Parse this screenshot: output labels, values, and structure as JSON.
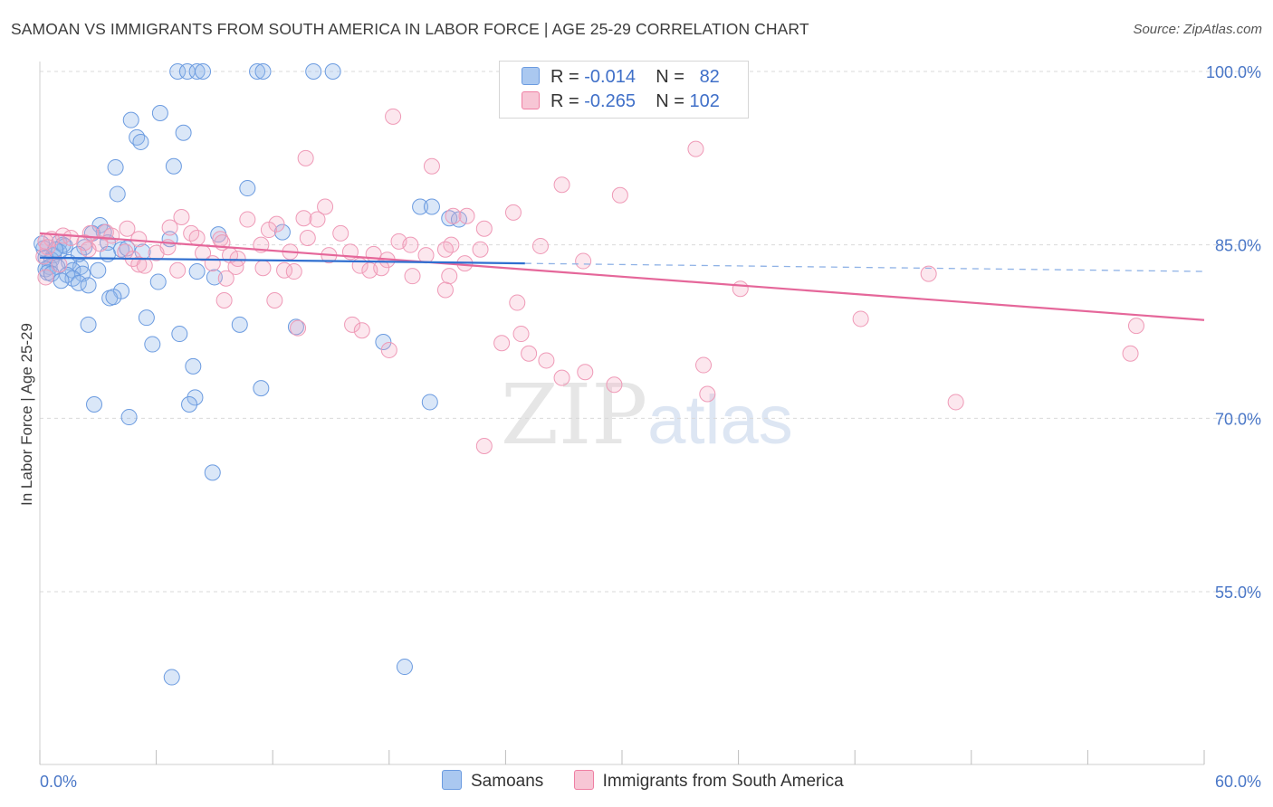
{
  "title": "SAMOAN VS IMMIGRANTS FROM SOUTH AMERICA IN LABOR FORCE | AGE 25-29 CORRELATION CHART",
  "source": "Source: ZipAtlas.com",
  "watermark": {
    "zip": "ZIP",
    "atlas": "atlas"
  },
  "legend": {
    "rows": [
      {
        "r_label": "R =",
        "r_value": "-0.014",
        "n_label": "N =",
        "n_value": "82",
        "color": "#aac8f0"
      },
      {
        "r_label": "R =",
        "r_value": "-0.265",
        "n_label": "N =",
        "n_value": "102",
        "color": "#f7b8cc"
      }
    ]
  },
  "bottom_legend": [
    "Samoans",
    "Immigrants from South America"
  ],
  "chart_data": {
    "type": "scatter",
    "title": "SAMOAN VS IMMIGRANTS FROM SOUTH AMERICA IN LABOR FORCE | AGE 25-29 CORRELATION CHART",
    "xlabel": "",
    "ylabel": "In Labor Force | Age 25-29",
    "xlim": [
      0,
      60
    ],
    "ylim": [
      40,
      103
    ],
    "x_ticks_labels": [
      "0.0%",
      "60.0%"
    ],
    "y_ticks": [
      55,
      70,
      85,
      100
    ],
    "y_ticks_labels": [
      "55.0%",
      "70.0%",
      "85.0%",
      "100.0%"
    ],
    "grid": "horizontal dashed",
    "colors": {
      "Samoans": "#6b9be0",
      "Immigrants from South America": "#ef7fa3",
      "Samoans_line": "#2f6fd0",
      "Immigrants from South America_line": "#e5679a"
    },
    "series": [
      {
        "name": "Samoans",
        "stats": {
          "R": -0.014,
          "N": 82
        },
        "trend": {
          "x0": 0,
          "y0": 83.9,
          "x1": 25,
          "y1": 83.4,
          "dashed_to_x": 60,
          "dashed_to_y": 82.7
        },
        "points": [
          [
            7.1,
            100
          ],
          [
            7.6,
            100
          ],
          [
            8.1,
            100
          ],
          [
            8.4,
            100
          ],
          [
            11.2,
            100
          ],
          [
            11.5,
            100
          ],
          [
            14.1,
            100
          ],
          [
            15.1,
            100
          ],
          [
            6.2,
            96.4
          ],
          [
            4.7,
            95.8
          ],
          [
            7.4,
            94.7
          ],
          [
            5.0,
            94.3
          ],
          [
            5.2,
            93.9
          ],
          [
            3.9,
            91.7
          ],
          [
            6.9,
            91.8
          ],
          [
            10.7,
            89.9
          ],
          [
            4.0,
            89.4
          ],
          [
            19.6,
            88.3
          ],
          [
            20.2,
            88.3
          ],
          [
            21.1,
            87.3
          ],
          [
            21.6,
            87.2
          ],
          [
            3.1,
            86.7
          ],
          [
            3.3,
            86.1
          ],
          [
            2.7,
            86.0
          ],
          [
            9.2,
            85.9
          ],
          [
            6.7,
            85.5
          ],
          [
            3.5,
            85.2
          ],
          [
            1.0,
            85.2
          ],
          [
            1.3,
            84.9
          ],
          [
            2.3,
            84.8
          ],
          [
            4.2,
            84.6
          ],
          [
            4.5,
            84.7
          ],
          [
            5.3,
            84.4
          ],
          [
            12.5,
            86.1
          ],
          [
            0.2,
            84.7
          ],
          [
            1.0,
            84.4
          ],
          [
            3.5,
            84.2
          ],
          [
            0.7,
            84.1
          ],
          [
            0.3,
            83.9
          ],
          [
            0.6,
            83.7
          ],
          [
            1.5,
            83.5
          ],
          [
            0.5,
            83.1
          ],
          [
            0.9,
            83.1
          ],
          [
            2.1,
            83.1
          ],
          [
            0.3,
            82.9
          ],
          [
            0.4,
            82.6
          ],
          [
            0.6,
            82.5
          ],
          [
            1.7,
            82.8
          ],
          [
            2.2,
            82.5
          ],
          [
            1.4,
            82.4
          ],
          [
            3.0,
            82.8
          ],
          [
            8.1,
            82.7
          ],
          [
            1.7,
            82.1
          ],
          [
            1.1,
            81.9
          ],
          [
            2.0,
            81.7
          ],
          [
            2.5,
            81.5
          ],
          [
            6.1,
            81.8
          ],
          [
            9.0,
            82.2
          ],
          [
            4.2,
            81.0
          ],
          [
            3.6,
            80.4
          ],
          [
            3.8,
            80.5
          ],
          [
            5.5,
            78.7
          ],
          [
            2.5,
            78.1
          ],
          [
            10.3,
            78.1
          ],
          [
            13.2,
            77.9
          ],
          [
            7.2,
            77.3
          ],
          [
            17.7,
            76.6
          ],
          [
            5.8,
            76.4
          ],
          [
            7.9,
            74.5
          ],
          [
            11.4,
            72.6
          ],
          [
            8.0,
            71.8
          ],
          [
            2.8,
            71.2
          ],
          [
            7.7,
            71.2
          ],
          [
            20.1,
            71.4
          ],
          [
            4.6,
            70.1
          ],
          [
            8.9,
            65.3
          ],
          [
            6.8,
            47.6
          ],
          [
            18.8,
            48.5
          ],
          [
            1.2,
            85.0
          ],
          [
            2.0,
            84.2
          ],
          [
            0.8,
            84.6
          ],
          [
            0.1,
            85.1
          ]
        ]
      },
      {
        "name": "Immigrants from South America",
        "stats": {
          "R": -0.265,
          "N": 102
        },
        "trend": {
          "x0": 0,
          "y0": 86.0,
          "x1": 60,
          "y1": 78.5
        },
        "points": [
          [
            27.2,
            100
          ],
          [
            32.0,
            100
          ],
          [
            18.2,
            96.1
          ],
          [
            33.8,
            93.3
          ],
          [
            13.7,
            92.5
          ],
          [
            20.2,
            91.8
          ],
          [
            26.9,
            90.2
          ],
          [
            29.9,
            89.3
          ],
          [
            14.7,
            88.3
          ],
          [
            24.4,
            87.8
          ],
          [
            7.3,
            87.4
          ],
          [
            10.7,
            87.2
          ],
          [
            13.6,
            87.3
          ],
          [
            22.0,
            87.5
          ],
          [
            21.3,
            87.5
          ],
          [
            12.2,
            86.8
          ],
          [
            6.7,
            86.5
          ],
          [
            4.5,
            86.4
          ],
          [
            22.9,
            86.4
          ],
          [
            15.5,
            86.0
          ],
          [
            3.4,
            86.1
          ],
          [
            2.6,
            86.0
          ],
          [
            1.2,
            85.8
          ],
          [
            1.6,
            85.6
          ],
          [
            3.7,
            85.8
          ],
          [
            5.1,
            85.5
          ],
          [
            7.8,
            86.0
          ],
          [
            8.1,
            85.6
          ],
          [
            9.3,
            85.5
          ],
          [
            13.8,
            85.6
          ],
          [
            0.6,
            85.5
          ],
          [
            0.3,
            85.3
          ],
          [
            2.3,
            85.2
          ],
          [
            3.1,
            85.1
          ],
          [
            9.4,
            85.2
          ],
          [
            11.4,
            85.0
          ],
          [
            18.5,
            85.3
          ],
          [
            19.1,
            85.0
          ],
          [
            21.2,
            85.0
          ],
          [
            25.8,
            84.9
          ],
          [
            20.9,
            84.6
          ],
          [
            22.7,
            84.6
          ],
          [
            0.4,
            84.8
          ],
          [
            4.4,
            84.4
          ],
          [
            6.0,
            84.3
          ],
          [
            8.4,
            84.3
          ],
          [
            9.8,
            84.1
          ],
          [
            12.9,
            84.4
          ],
          [
            14.9,
            84.1
          ],
          [
            16.0,
            84.4
          ],
          [
            17.2,
            84.2
          ],
          [
            19.9,
            84.1
          ],
          [
            4.8,
            83.8
          ],
          [
            10.2,
            83.8
          ],
          [
            17.9,
            83.7
          ],
          [
            28.0,
            83.6
          ],
          [
            8.9,
            83.4
          ],
          [
            10.1,
            83.1
          ],
          [
            16.5,
            83.2
          ],
          [
            21.9,
            83.4
          ],
          [
            5.1,
            83.3
          ],
          [
            5.4,
            83.2
          ],
          [
            7.1,
            82.8
          ],
          [
            11.5,
            83.0
          ],
          [
            12.6,
            82.8
          ],
          [
            17.0,
            82.8
          ],
          [
            17.6,
            83.0
          ],
          [
            13.1,
            82.7
          ],
          [
            19.2,
            82.3
          ],
          [
            0.3,
            82.2
          ],
          [
            21.1,
            82.3
          ],
          [
            45.8,
            82.5
          ],
          [
            36.1,
            81.2
          ],
          [
            20.9,
            81.1
          ],
          [
            24.6,
            80.0
          ],
          [
            9.5,
            80.2
          ],
          [
            12.1,
            80.2
          ],
          [
            42.3,
            78.6
          ],
          [
            56.5,
            78.0
          ],
          [
            13.3,
            77.8
          ],
          [
            16.1,
            78.1
          ],
          [
            16.6,
            77.6
          ],
          [
            24.8,
            77.3
          ],
          [
            25.2,
            75.6
          ],
          [
            18.0,
            75.9
          ],
          [
            23.8,
            76.5
          ],
          [
            26.1,
            75.0
          ],
          [
            56.2,
            75.6
          ],
          [
            28.1,
            74.0
          ],
          [
            34.2,
            74.6
          ],
          [
            29.6,
            72.9
          ],
          [
            26.9,
            73.5
          ],
          [
            34.4,
            72.1
          ],
          [
            47.2,
            71.4
          ],
          [
            22.9,
            67.6
          ],
          [
            1.0,
            83.3
          ],
          [
            2.5,
            84.6
          ],
          [
            6.6,
            84.8
          ],
          [
            9.6,
            82.1
          ],
          [
            11.8,
            86.3
          ],
          [
            14.3,
            87.2
          ],
          [
            0.2,
            84.0
          ]
        ]
      }
    ]
  }
}
